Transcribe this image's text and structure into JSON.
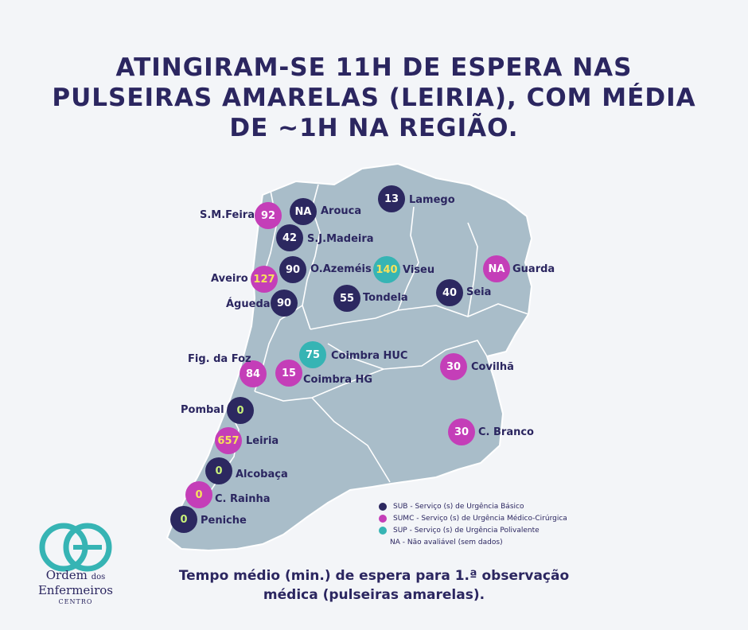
{
  "headline": "ATINGIRAM-SE 11H DE ESPERA NAS PULSEIRAS AMARELAS (LEIRIA), COM MÉDIA DE ~1H NA REGIÃO.",
  "colors": {
    "sub": "#2c2860",
    "sumc": "#c43eb8",
    "sup": "#36b4b4",
    "map": "#a9bdc9"
  },
  "markers": [
    {
      "id": "sm-feira",
      "value": "92",
      "type": "sumc",
      "label": "S.M.Feira"
    },
    {
      "id": "arouca",
      "value": "NA",
      "type": "sub",
      "label": "Arouca"
    },
    {
      "id": "lamego",
      "value": "13",
      "type": "sub",
      "label": "Lamego"
    },
    {
      "id": "sj-madeira",
      "value": "42",
      "type": "sub",
      "label": "S.J.Madeira"
    },
    {
      "id": "o-azemeis",
      "value": "90",
      "type": "sub",
      "label": "O.Azeméis"
    },
    {
      "id": "aveiro",
      "value": "127",
      "type": "sumc",
      "label": "Aveiro"
    },
    {
      "id": "viseu",
      "value": "140",
      "type": "sup",
      "label": "Viseu"
    },
    {
      "id": "guarda",
      "value": "NA",
      "type": "sumc",
      "label": "Guarda"
    },
    {
      "id": "agueda",
      "value": "90",
      "type": "sub",
      "label": "Águeda"
    },
    {
      "id": "tondela",
      "value": "55",
      "type": "sub",
      "label": "Tondela"
    },
    {
      "id": "seia",
      "value": "40",
      "type": "sub",
      "label": "Seia"
    },
    {
      "id": "coimbra-huc",
      "value": "75",
      "type": "sup",
      "label": "Coimbra HUC"
    },
    {
      "id": "fig-foz",
      "value": "84",
      "type": "sumc",
      "label": "Fig. da Foz"
    },
    {
      "id": "coimbra-hg",
      "value": "15",
      "type": "sumc",
      "label": "Coimbra HG"
    },
    {
      "id": "covilha",
      "value": "30",
      "type": "sumc",
      "label": "Covilhã"
    },
    {
      "id": "pombal",
      "value": "0",
      "type": "sub",
      "label": "Pombal"
    },
    {
      "id": "leiria",
      "value": "657",
      "type": "sumc",
      "label": "Leiria"
    },
    {
      "id": "c-branco",
      "value": "30",
      "type": "sumc",
      "label": "C. Branco"
    },
    {
      "id": "alcobaca",
      "value": "0",
      "type": "sub",
      "label": "Alcobaça"
    },
    {
      "id": "c-rainha",
      "value": "0",
      "type": "sumc",
      "label": "C. Rainha"
    },
    {
      "id": "peniche",
      "value": "0",
      "type": "sub",
      "label": "Peniche"
    }
  ],
  "legend": {
    "sub": "SUB - Serviço (s) de Urgência Básico",
    "sumc": "SUMC - Serviço (s) de Urgência Médico-Cirúrgica",
    "sup": "SUP - Serviço (s) de Urgência Polivalente",
    "na": "NA - Não avaliável (sem dados)"
  },
  "caption_line1": "Tempo médio (min.) de espera para 1.ª observação",
  "caption_line2": "médica (pulseiras amarelas).",
  "logo": {
    "line1": "Ordem",
    "line1_small": "dos",
    "line2": "Enfermeiros",
    "line3": "CENTRO"
  }
}
